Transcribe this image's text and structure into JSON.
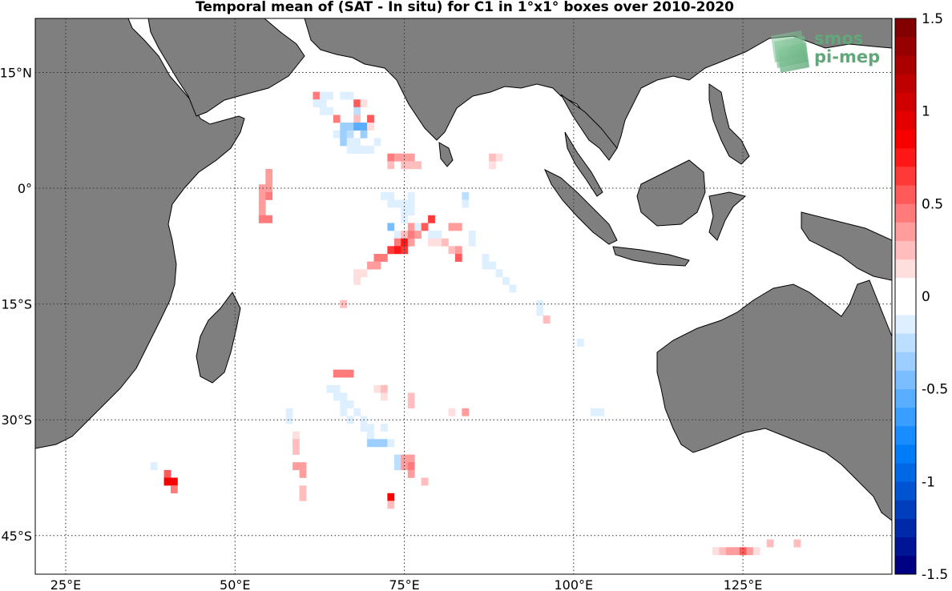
{
  "title": "Temporal mean of (SAT - In situ) for C1 in 1°x1° boxes over 2010-2020",
  "logo": {
    "line1": "smos",
    "line2": "pi-mep",
    "color": "#62a77a"
  },
  "map": {
    "lon_range": [
      20.5,
      147
    ],
    "lat_range": [
      -50,
      22
    ],
    "x_ticks": [
      {
        "lon": 25,
        "label": "25°E"
      },
      {
        "lon": 50,
        "label": "50°E"
      },
      {
        "lon": 75,
        "label": "75°E"
      },
      {
        "lon": 100,
        "label": "100°E"
      },
      {
        "lon": 125,
        "label": "125°E"
      }
    ],
    "y_ticks": [
      {
        "lat": 15,
        "label": "15°N"
      },
      {
        "lat": 0,
        "label": "0°"
      },
      {
        "lat": -15,
        "label": "15°S"
      },
      {
        "lat": -30,
        "label": "30°S"
      },
      {
        "lat": -45,
        "label": "45°S"
      }
    ],
    "land_color": "#7f7f7f",
    "ocean_color": "#ffffff"
  },
  "colorbar": {
    "min": -1.5,
    "max": 1.5,
    "ticks": [
      {
        "value": 1.5,
        "label": "1.5"
      },
      {
        "value": 1,
        "label": "1"
      },
      {
        "value": 0.5,
        "label": "0.5"
      },
      {
        "value": 0,
        "label": "0"
      },
      {
        "value": -0.5,
        "label": "-0.5"
      },
      {
        "value": -1,
        "label": "-1"
      },
      {
        "value": -1.5,
        "label": "-1.5"
      }
    ],
    "levels": 30
  },
  "chart_data": {
    "type": "heatmap",
    "title": "Temporal mean of (SAT - In situ) for C1 in 1°x1° boxes over 2010-2020",
    "xlabel": "",
    "ylabel": "",
    "value_range": [
      -1.5,
      1.5
    ],
    "cells": [
      [
        62,
        12,
        0.45
      ],
      [
        63,
        12,
        -0.15
      ],
      [
        64,
        12,
        -0.1
      ],
      [
        66,
        12,
        -0.1
      ],
      [
        67,
        12,
        -0.1
      ],
      [
        62,
        11,
        -0.2
      ],
      [
        63,
        11,
        -0.2
      ],
      [
        68,
        11,
        0.5
      ],
      [
        69,
        11,
        0.15
      ],
      [
        63,
        10,
        -0.1
      ],
      [
        64,
        10,
        -0.1
      ],
      [
        68,
        10,
        -0.25
      ],
      [
        65,
        9,
        0.4
      ],
      [
        68,
        9,
        0.2
      ],
      [
        70,
        9,
        0.5
      ],
      [
        66,
        8,
        -0.4
      ],
      [
        67,
        8,
        -0.4
      ],
      [
        68,
        8,
        -0.6
      ],
      [
        69,
        8,
        -0.6
      ],
      [
        70,
        8,
        0.15
      ],
      [
        65,
        7,
        -0.2
      ],
      [
        66,
        7,
        -0.3
      ],
      [
        67,
        7,
        -0.25
      ],
      [
        69,
        7,
        -0.4
      ],
      [
        66,
        6,
        -0.3
      ],
      [
        67,
        6,
        -0.2
      ],
      [
        68,
        6,
        -0.15
      ],
      [
        71,
        6,
        -0.15
      ],
      [
        67,
        5,
        -0.1
      ],
      [
        68,
        5,
        -0.1
      ],
      [
        69,
        5,
        -0.1
      ],
      [
        70,
        5,
        -0.1
      ],
      [
        73,
        4,
        0.45
      ],
      [
        74,
        4,
        0.3
      ],
      [
        75,
        4,
        0.3
      ],
      [
        76,
        4,
        0.3
      ],
      [
        88,
        4,
        0.2
      ],
      [
        89,
        4,
        0.15
      ],
      [
        55,
        2,
        0.3
      ],
      [
        73,
        3,
        0.2
      ],
      [
        75,
        3,
        0.2
      ],
      [
        76,
        3,
        0.2
      ],
      [
        77,
        3,
        0.25
      ],
      [
        88,
        3,
        0.15
      ],
      [
        55,
        1,
        0.3
      ],
      [
        54,
        0,
        0.3
      ],
      [
        55,
        0,
        0.35
      ],
      [
        54,
        -1,
        0.3
      ],
      [
        55,
        -1,
        0.4
      ],
      [
        72,
        -1,
        -0.1
      ],
      [
        73,
        -1,
        -0.1
      ],
      [
        76,
        -1,
        -0.2
      ],
      [
        84,
        -1,
        -0.25
      ],
      [
        54,
        -2,
        0.35
      ],
      [
        73,
        -2,
        -0.1
      ],
      [
        74,
        -2,
        -0.15
      ],
      [
        75,
        -2,
        -0.1
      ],
      [
        76,
        -2,
        -0.15
      ],
      [
        84,
        -2,
        -0.15
      ],
      [
        54,
        -3,
        0.3
      ],
      [
        75,
        -3,
        -0.1
      ],
      [
        76,
        -3,
        -0.1
      ],
      [
        54,
        -4,
        0.4
      ],
      [
        55,
        -4,
        0.4
      ],
      [
        75,
        -4,
        -0.1
      ],
      [
        79,
        -4,
        0.6
      ],
      [
        73,
        -5,
        -0.5
      ],
      [
        76,
        -5,
        0.35
      ],
      [
        77,
        -5,
        -0.1
      ],
      [
        78,
        -5,
        0.5
      ],
      [
        82,
        -5,
        0.3
      ],
      [
        83,
        -5,
        0.3
      ],
      [
        74,
        -6,
        -0.1
      ],
      [
        75,
        -6,
        0.25
      ],
      [
        76,
        -6,
        0.45
      ],
      [
        77,
        -6,
        0.3
      ],
      [
        79,
        -6,
        -0.1
      ],
      [
        80,
        -6,
        -0.1
      ],
      [
        85,
        -6,
        -0.1
      ],
      [
        74,
        -7,
        0.4
      ],
      [
        75,
        -7,
        0.7
      ],
      [
        76,
        -7,
        0.3
      ],
      [
        79,
        -7,
        0.15
      ],
      [
        80,
        -7,
        0.1
      ],
      [
        81,
        -7,
        0.2
      ],
      [
        85,
        -7,
        -0.1
      ],
      [
        73,
        -8,
        0.6
      ],
      [
        74,
        -8,
        0.7
      ],
      [
        75,
        -8,
        0.6
      ],
      [
        82,
        -8,
        0.25
      ],
      [
        83,
        -8,
        0.3
      ],
      [
        71,
        -9,
        0.4
      ],
      [
        72,
        -9,
        0.4
      ],
      [
        83,
        -9,
        0.55
      ],
      [
        87,
        -9,
        -0.1
      ],
      [
        70,
        -10,
        0.35
      ],
      [
        71,
        -10,
        0.3
      ],
      [
        87,
        -10,
        -0.1
      ],
      [
        88,
        -10,
        -0.1
      ],
      [
        68,
        -11,
        0.15
      ],
      [
        69,
        -11,
        0.15
      ],
      [
        89,
        -11,
        -0.1
      ],
      [
        68,
        -12,
        0.15
      ],
      [
        90,
        -12,
        -0.1
      ],
      [
        91,
        -13,
        -0.1
      ],
      [
        66,
        -15,
        0.25
      ],
      [
        95,
        -15,
        -0.15
      ],
      [
        95,
        -16,
        -0.15
      ],
      [
        96,
        -17,
        0.25
      ],
      [
        101,
        -20,
        -0.1
      ],
      [
        65,
        -24,
        0.4
      ],
      [
        66,
        -24,
        0.4
      ],
      [
        67,
        -24,
        0.4
      ],
      [
        64,
        -26,
        -0.15
      ],
      [
        65,
        -26,
        -0.15
      ],
      [
        71,
        -26,
        0.15
      ],
      [
        72,
        -26,
        0.2
      ],
      [
        65,
        -27,
        -0.1
      ],
      [
        66,
        -27,
        -0.1
      ],
      [
        72,
        -27,
        0.15
      ],
      [
        76,
        -27,
        0.2
      ],
      [
        66,
        -28,
        -0.1
      ],
      [
        67,
        -28,
        -0.1
      ],
      [
        76,
        -28,
        0.2
      ],
      [
        58,
        -29,
        -0.2
      ],
      [
        66,
        -29,
        -0.1
      ],
      [
        68,
        -29,
        -0.1
      ],
      [
        82,
        -29,
        0.15
      ],
      [
        84,
        -29,
        0.3
      ],
      [
        103,
        -29,
        -0.2
      ],
      [
        104,
        -29,
        -0.2
      ],
      [
        58,
        -30,
        -0.2
      ],
      [
        67,
        -30,
        -0.1
      ],
      [
        69,
        -30,
        -0.1
      ],
      [
        69,
        -31,
        -0.15
      ],
      [
        70,
        -31,
        -0.1
      ],
      [
        72,
        -31,
        -0.15
      ],
      [
        59,
        -32,
        0.15
      ],
      [
        70,
        -32,
        -0.15
      ],
      [
        59,
        -33,
        0.25
      ],
      [
        70,
        -33,
        -0.4
      ],
      [
        71,
        -33,
        -0.4
      ],
      [
        72,
        -33,
        -0.4
      ],
      [
        73,
        -33,
        -0.15
      ],
      [
        59,
        -34,
        0.2
      ],
      [
        74,
        -35,
        -0.25
      ],
      [
        75,
        -35,
        0.3
      ],
      [
        76,
        -35,
        0.3
      ],
      [
        38,
        -36,
        -0.15
      ],
      [
        59,
        -36,
        0.3
      ],
      [
        60,
        -36,
        0.3
      ],
      [
        74,
        -36,
        -0.25
      ],
      [
        75,
        -36,
        0.35
      ],
      [
        76,
        -36,
        0.45
      ],
      [
        40,
        -37,
        0.5
      ],
      [
        60,
        -37,
        0.3
      ],
      [
        76,
        -37,
        0.35
      ],
      [
        40,
        -38,
        0.8
      ],
      [
        41,
        -38,
        0.9
      ],
      [
        78,
        -38,
        0.25
      ],
      [
        41,
        -39,
        0.4
      ],
      [
        60,
        -39,
        0.2
      ],
      [
        60,
        -40,
        0.2
      ],
      [
        73,
        -40,
        0.8
      ],
      [
        73,
        -41,
        0.25
      ],
      [
        129,
        -46,
        0.2
      ],
      [
        133,
        -46,
        0.2
      ],
      [
        121,
        -47,
        0.15
      ],
      [
        122,
        -47,
        0.2
      ],
      [
        123,
        -47,
        0.3
      ],
      [
        124,
        -47,
        0.3
      ],
      [
        125,
        -47,
        0.55
      ],
      [
        126,
        -47,
        0.3
      ],
      [
        127,
        -47,
        0.15
      ]
    ]
  }
}
